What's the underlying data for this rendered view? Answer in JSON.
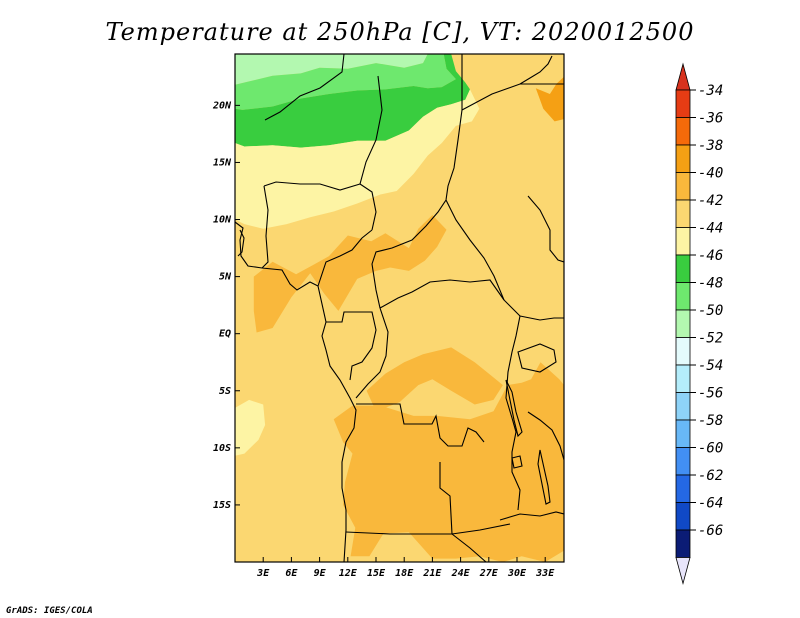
{
  "chart_data": {
    "type": "heatmap",
    "title": "Temperature at 250hPa [C], VT: 2020012500",
    "variable": "Temperature",
    "level": "250hPa",
    "units": "C",
    "valid_time": "2020012500",
    "x_range_deg": [
      0,
      35
    ],
    "y_range_deg": [
      -20,
      24.5
    ],
    "x_ticks": [
      {
        "value": 3,
        "label": "3E"
      },
      {
        "value": 6,
        "label": "6E"
      },
      {
        "value": 9,
        "label": "9E"
      },
      {
        "value": 12,
        "label": "12E"
      },
      {
        "value": 15,
        "label": "15E"
      },
      {
        "value": 18,
        "label": "18E"
      },
      {
        "value": 21,
        "label": "21E"
      },
      {
        "value": 24,
        "label": "24E"
      },
      {
        "value": 27,
        "label": "27E"
      },
      {
        "value": 30,
        "label": "30E"
      },
      {
        "value": 33,
        "label": "33E"
      }
    ],
    "y_ticks": [
      {
        "value": 20,
        "label": "20N"
      },
      {
        "value": 15,
        "label": "15N"
      },
      {
        "value": 10,
        "label": "10N"
      },
      {
        "value": 5,
        "label": "5N"
      },
      {
        "value": 0,
        "label": "EQ"
      },
      {
        "value": -5,
        "label": "5S"
      },
      {
        "value": -10,
        "label": "10S"
      },
      {
        "value": -15,
        "label": "15S"
      }
    ],
    "colorbar": {
      "labels": [
        "-34",
        "-36",
        "-38",
        "-40",
        "-42",
        "-44",
        "-46",
        "-48",
        "-50",
        "-52",
        "-54",
        "-56",
        "-58",
        "-60",
        "-62",
        "-64",
        "-66"
      ],
      "colors": [
        "#e63c14",
        "#f56a0a",
        "#f5a014",
        "#f9b83c",
        "#fbd771",
        "#fdf4a4",
        "#39cd3f",
        "#6ee86e",
        "#b3f8b0",
        "#e4fbfc",
        "#b4edfb",
        "#8ed3f8",
        "#68b8f7",
        "#428ff3",
        "#2468e4",
        "#1049c6",
        "#0b1c75"
      ],
      "top_arrow_color": "#d7321e",
      "bottom_arrow_color": "#e8e5fb"
    },
    "regions": [
      {
        "range": "-48 to -50",
        "color": "#b3f8b0",
        "pts": [
          [
            0,
            24.5
          ],
          [
            20.5,
            24.5
          ],
          [
            20,
            23.7
          ],
          [
            18,
            23.3
          ],
          [
            15,
            23.7
          ],
          [
            12,
            23.2
          ],
          [
            9,
            23.3
          ],
          [
            7,
            22.8
          ],
          [
            4,
            22.6
          ],
          [
            1.5,
            22.1
          ],
          [
            0,
            21.8
          ]
        ]
      },
      {
        "range": "-46 to -48",
        "color": "#6ee86e",
        "pts": [
          [
            0,
            21.8
          ],
          [
            1.5,
            22.1
          ],
          [
            4,
            22.6
          ],
          [
            7,
            22.8
          ],
          [
            9,
            23.3
          ],
          [
            12,
            23.2
          ],
          [
            15,
            23.7
          ],
          [
            18,
            23.3
          ],
          [
            20,
            23.7
          ],
          [
            20.5,
            24.5
          ],
          [
            22.2,
            24.5
          ],
          [
            22.5,
            23.2
          ],
          [
            23.5,
            22.3
          ],
          [
            22,
            21.6
          ],
          [
            20.5,
            21.5
          ],
          [
            19,
            21.7
          ],
          [
            16,
            21.4
          ],
          [
            13,
            21.3
          ],
          [
            10,
            21.0
          ],
          [
            7,
            20.6
          ],
          [
            4,
            19.9
          ],
          [
            0.8,
            19.6
          ],
          [
            0,
            19.7
          ]
        ]
      },
      {
        "range": "-44 to -46",
        "color": "#39cd3f",
        "pts": [
          [
            0,
            19.7
          ],
          [
            0.8,
            19.6
          ],
          [
            4,
            19.9
          ],
          [
            7,
            20.6
          ],
          [
            10,
            21.0
          ],
          [
            13,
            21.3
          ],
          [
            16,
            21.4
          ],
          [
            19,
            21.7
          ],
          [
            20.5,
            21.5
          ],
          [
            22,
            21.6
          ],
          [
            23.5,
            22.3
          ],
          [
            22.5,
            23.2
          ],
          [
            22.2,
            24.5
          ],
          [
            23,
            24.5
          ],
          [
            23.5,
            23
          ],
          [
            24.5,
            22
          ],
          [
            25,
            21.4
          ],
          [
            24.5,
            20.5
          ],
          [
            23,
            20.1
          ],
          [
            21.5,
            19.8
          ],
          [
            20,
            19
          ],
          [
            18.5,
            17.8
          ],
          [
            16,
            16.9
          ],
          [
            13,
            16.9
          ],
          [
            10,
            16.5
          ],
          [
            7,
            16.3
          ],
          [
            4,
            16.5
          ],
          [
            1,
            16.4
          ],
          [
            0,
            16.7
          ]
        ]
      },
      {
        "range": "-42 to -44",
        "color": "#fdf4a4",
        "pts": [
          [
            0,
            16.7
          ],
          [
            1,
            16.4
          ],
          [
            4,
            16.5
          ],
          [
            7,
            16.3
          ],
          [
            10,
            16.5
          ],
          [
            13,
            16.9
          ],
          [
            16,
            16.9
          ],
          [
            18.5,
            17.8
          ],
          [
            20,
            19
          ],
          [
            21.5,
            19.8
          ],
          [
            23,
            20.1
          ],
          [
            24.5,
            20.5
          ],
          [
            25,
            21.4
          ],
          [
            26,
            19.7
          ],
          [
            25.2,
            18.6
          ],
          [
            23.5,
            18.2
          ],
          [
            22,
            16.7
          ],
          [
            20.5,
            15.6
          ],
          [
            19,
            14
          ],
          [
            17.2,
            12.5
          ],
          [
            15.5,
            12.2
          ],
          [
            13,
            11.4
          ],
          [
            10.5,
            10.7
          ],
          [
            8,
            10.2
          ],
          [
            5.5,
            9.6
          ],
          [
            3,
            9.2
          ],
          [
            1,
            9.6
          ],
          [
            0,
            10
          ]
        ]
      },
      {
        "range": "-42 to -44",
        "color": "#fdf4a4",
        "pts": [
          [
            0,
            -6.5
          ],
          [
            1.5,
            -5.8
          ],
          [
            3,
            -6.2
          ],
          [
            3.2,
            -8
          ],
          [
            2.5,
            -9.3
          ],
          [
            1,
            -10.5
          ],
          [
            0,
            -10.7
          ]
        ]
      },
      {
        "range": "-38 to -40",
        "color": "#f9b83c",
        "pts": [
          [
            2,
            5
          ],
          [
            4,
            6.3
          ],
          [
            6.5,
            5.2
          ],
          [
            8.5,
            6.1
          ],
          [
            10,
            6.8
          ],
          [
            12,
            8.6
          ],
          [
            14.5,
            8.1
          ],
          [
            16,
            8.8
          ],
          [
            18.5,
            7.5
          ],
          [
            19.5,
            9.2
          ],
          [
            21,
            10.4
          ],
          [
            22.5,
            9.1
          ],
          [
            21.5,
            7.6
          ],
          [
            20.2,
            6.4
          ],
          [
            18.5,
            5.5
          ],
          [
            16.5,
            5.8
          ],
          [
            15,
            5.5
          ],
          [
            13,
            4.8
          ],
          [
            11,
            2
          ],
          [
            9.5,
            3.5
          ],
          [
            8,
            5.3
          ],
          [
            6,
            3.2
          ],
          [
            4,
            0.5
          ],
          [
            2.3,
            0.1
          ],
          [
            2,
            2
          ]
        ]
      },
      {
        "range": "-38 to -40",
        "color": "#f9b83c",
        "pts": [
          [
            20,
            -1.8
          ],
          [
            23,
            -1.2
          ],
          [
            25.5,
            -2.5
          ],
          [
            27,
            -3.5
          ],
          [
            28.5,
            -4.5
          ],
          [
            27.5,
            -5.8
          ],
          [
            25.5,
            -6.2
          ],
          [
            23,
            -5
          ],
          [
            21,
            -4
          ],
          [
            19.5,
            -4.5
          ],
          [
            17.5,
            -6
          ],
          [
            15,
            -6.8
          ],
          [
            14,
            -5
          ],
          [
            16,
            -3.5
          ],
          [
            18,
            -2.5
          ]
        ]
      },
      {
        "range": "-38 to -40",
        "color": "#f9b83c",
        "pts": [
          [
            10.5,
            -7.5
          ],
          [
            12.5,
            -6.3
          ],
          [
            15.5,
            -6.3
          ],
          [
            19,
            -7.2
          ],
          [
            21.5,
            -7.2
          ],
          [
            25,
            -7.5
          ],
          [
            27.5,
            -6.8
          ],
          [
            29,
            -4.5
          ],
          [
            30.5,
            -4.3
          ],
          [
            31.5,
            -4
          ],
          [
            32.5,
            -2.5
          ],
          [
            34.5,
            -4
          ],
          [
            35,
            -4.5
          ],
          [
            35,
            -19
          ],
          [
            33,
            -20
          ],
          [
            30.5,
            -19.5
          ],
          [
            28.5,
            -20
          ],
          [
            26,
            -19.5
          ],
          [
            23.5,
            -19.7
          ],
          [
            21,
            -19.7
          ],
          [
            18.5,
            -17.4
          ],
          [
            15.8,
            -17.5
          ],
          [
            14.3,
            -19.5
          ],
          [
            12.3,
            -19.5
          ],
          [
            12.8,
            -17
          ],
          [
            11.5,
            -15
          ],
          [
            11.7,
            -13
          ],
          [
            12.5,
            -10.5
          ],
          [
            11.5,
            -9.5
          ]
        ]
      },
      {
        "range": "-36 to -38",
        "color": "#f5a014",
        "pts": [
          [
            32,
            21.5
          ],
          [
            32.8,
            19.7
          ],
          [
            34,
            18.6
          ],
          [
            35,
            18.8
          ],
          [
            35,
            22.5
          ],
          [
            34.2,
            21.9
          ],
          [
            33.5,
            21
          ]
        ]
      }
    ]
  },
  "credit": "GrADS: IGES/COLA"
}
